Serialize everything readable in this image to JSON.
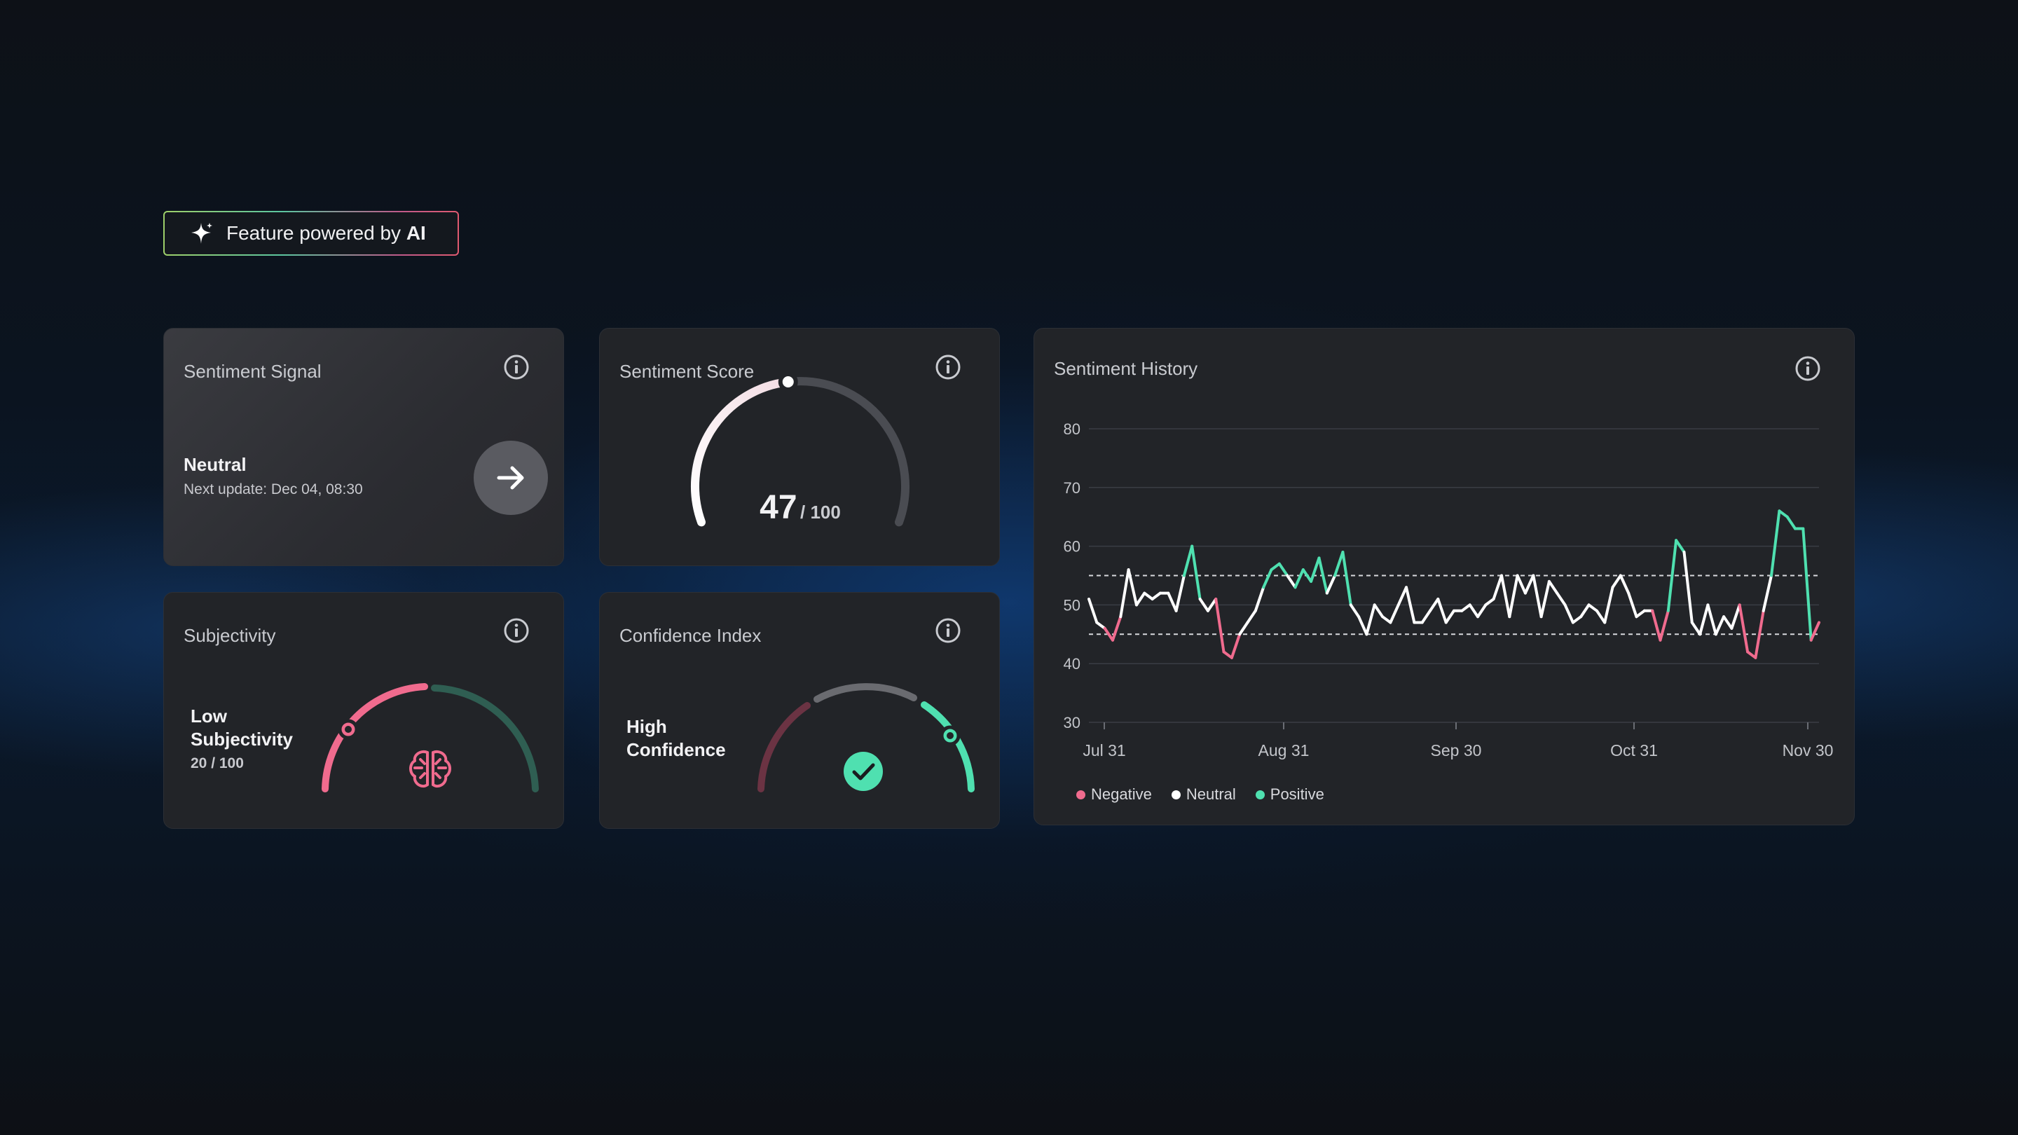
{
  "badge": {
    "prefix": "Feature powered by ",
    "strong": "AI",
    "icon": "sparkle-icon"
  },
  "signal": {
    "title": "Sentiment Signal",
    "value": "Neutral",
    "next_update": "Next update: Dec 04, 08:30",
    "icon": "arrow-right-icon"
  },
  "score": {
    "title": "Sentiment Score",
    "value": "47",
    "max": "/ 100",
    "fraction": 0.47
  },
  "subjectivity": {
    "title": "Subjectivity",
    "label_line1": "Low",
    "label_line2": "Subjectivity",
    "value": "20 / 100",
    "fraction": 0.2,
    "icon": "brain-icon"
  },
  "confidence": {
    "title": "Confidence Index",
    "label_line1": "High",
    "label_line2": "Confidence",
    "fraction": 0.85,
    "icon": "check-circle-icon"
  },
  "history": {
    "title": "Sentiment History",
    "legend": [
      {
        "label": "Negative",
        "color": "#f06b8e"
      },
      {
        "label": "Neutral",
        "color": "#ffffff"
      },
      {
        "label": "Positive",
        "color": "#4fe0b0"
      }
    ]
  },
  "colors": {
    "negative": "#f06b8e",
    "neutral": "#ffffff",
    "positive": "#4fe0b0",
    "card": "#222428"
  },
  "chart_data": {
    "type": "line",
    "title": "Sentiment History",
    "xlabel": "",
    "ylabel": "",
    "ylim": [
      30,
      80
    ],
    "yticks": [
      30,
      40,
      50,
      60,
      70,
      80
    ],
    "xticks": [
      "Jul 31",
      "Aug 31",
      "Sep 30",
      "Oct 31",
      "Nov 30"
    ],
    "thresholds": [
      45,
      55
    ],
    "series": [
      {
        "values": [
          51,
          47,
          46,
          44,
          48,
          56,
          50,
          52,
          51,
          52,
          52,
          49,
          55,
          60,
          51,
          49,
          51,
          42,
          41,
          45,
          47,
          49,
          53,
          56,
          57,
          55,
          53,
          56,
          54,
          58,
          52,
          55,
          59,
          50,
          48,
          45,
          50,
          48,
          47,
          50,
          53,
          47,
          47,
          49,
          51,
          47,
          49,
          49,
          50,
          48,
          50,
          51,
          55,
          48,
          55,
          52,
          55,
          48,
          54,
          52,
          50,
          47,
          48,
          50,
          49,
          47,
          53,
          55,
          52,
          48,
          49,
          49,
          44,
          49,
          61,
          59,
          47,
          45,
          50,
          45,
          48,
          46,
          50,
          42,
          41,
          49,
          55,
          66,
          65,
          63,
          63,
          44,
          47
        ]
      }
    ]
  }
}
